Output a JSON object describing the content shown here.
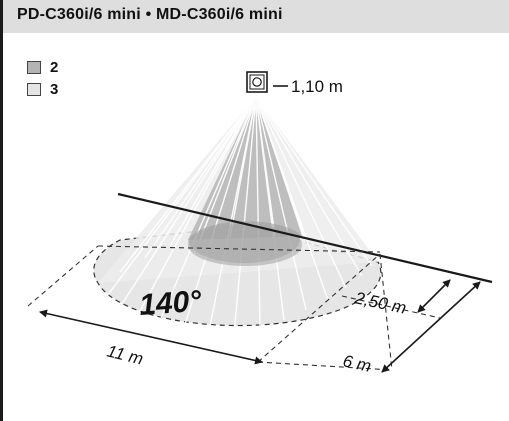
{
  "header": {
    "title": "PD-C360i/6 mini  •  MD-C360i/6 mini"
  },
  "legend": [
    {
      "label": "2",
      "color": "#b4b4b4"
    },
    {
      "label": "3",
      "color": "#e4e4e4"
    }
  ],
  "diagram": {
    "mount_height": "1,10 m",
    "angle": "140°",
    "dim_width": "11 m",
    "dim_inner_radius": "2,50 m",
    "dim_outer_radius": "6 m",
    "colors": {
      "zone_2": "#b4b4b4",
      "zone_3": "#e4e4e4",
      "line": "#1a1a1a"
    },
    "icons": [
      "sensor-icon"
    ]
  }
}
